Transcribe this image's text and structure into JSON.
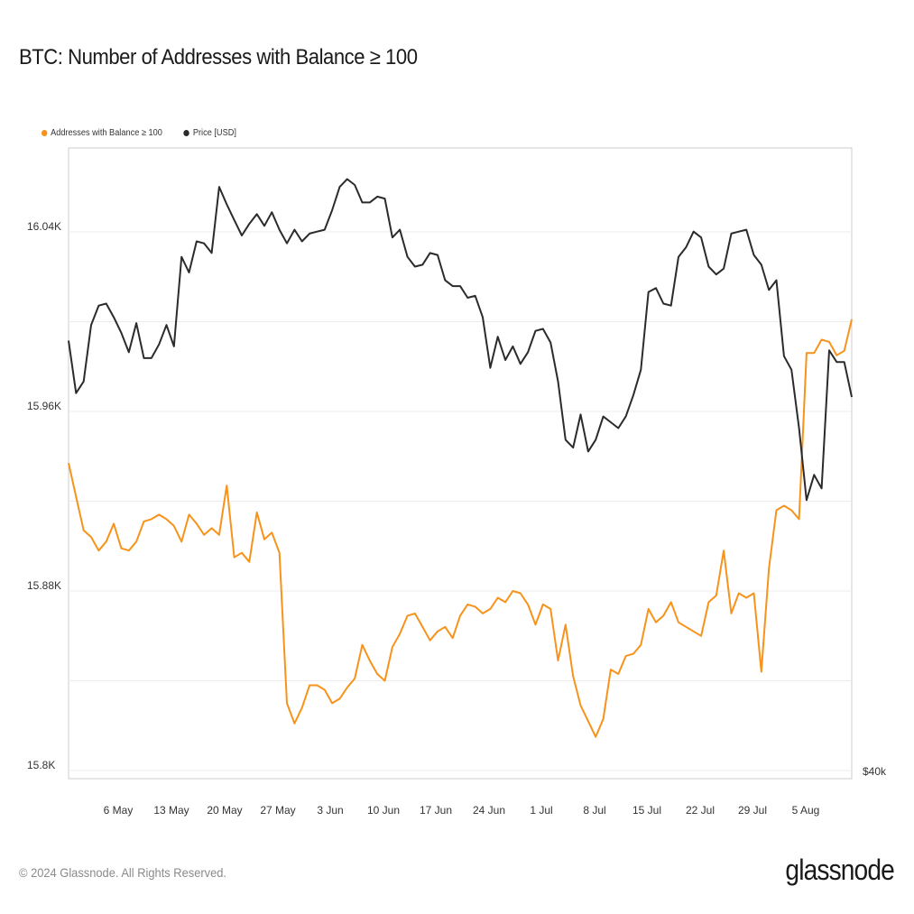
{
  "title": "BTC: Number of Addresses with Balance ≥ 100",
  "legend": {
    "series_1": "Addresses with Balance ≥ 100",
    "series_2": "Price [USD]"
  },
  "footer": {
    "copyright": "© 2024 Glassnode. All Rights Reserved.",
    "brand": "glassnode"
  },
  "colors": {
    "addresses": "#f7931a",
    "price": "#2b2b2b",
    "grid": "#ececec",
    "axis": "#cccccc"
  },
  "chart_data": {
    "type": "line",
    "title": "BTC: Number of Addresses with Balance ≥ 100",
    "xlabel": "",
    "ylabel": "",
    "x_tick_labels": [
      "6 May",
      "13 May",
      "20 May",
      "27 May",
      "3 Jun",
      "10 Jun",
      "17 Jun",
      "24 Jun",
      "1 Jul",
      "8 Jul",
      "15 Jul",
      "22 Jul",
      "29 Jul",
      "5 Aug"
    ],
    "y_left_tick_labels": [
      "16.04K",
      "15.96K",
      "15.88K",
      "15.8K"
    ],
    "y_left_tick_values": [
      16040,
      15960,
      15880,
      15800
    ],
    "y_right_tick_labels": [
      "$40k"
    ],
    "y_left_range": [
      15800,
      16080
    ],
    "x_range": [
      0,
      104
    ],
    "series": [
      {
        "name": "Addresses with Balance ≥ 100",
        "axis": "left",
        "values": [
          15937,
          15922,
          15907,
          15904,
          15898,
          15902,
          15910,
          15899,
          15898,
          15902,
          15911,
          15912,
          15914,
          15912,
          15909,
          15902,
          15914,
          15910,
          15905,
          15908,
          15905,
          15927,
          15895,
          15897,
          15893,
          15915,
          15903,
          15906,
          15897,
          15830,
          15821,
          15828,
          15838,
          15838,
          15836,
          15830,
          15832,
          15837,
          15841,
          15856,
          15849,
          15843,
          15840,
          15855,
          15861,
          15869,
          15870,
          15864,
          15858,
          15862,
          15864,
          15859,
          15869,
          15874,
          15873,
          15870,
          15872,
          15877,
          15875,
          15880,
          15879,
          15874,
          15865,
          15874,
          15872,
          15849,
          15865,
          15842,
          15829,
          15822,
          15815,
          15823,
          15845,
          15843,
          15851,
          15852,
          15856,
          15872,
          15866,
          15869,
          15875,
          15866,
          15864,
          15862,
          15860,
          15875,
          15878,
          15898,
          15870,
          15879,
          15877,
          15879,
          15844,
          15890,
          15916,
          15918,
          15916,
          15912,
          15986,
          15986,
          15992,
          15991,
          15985,
          15987,
          16001
        ]
      },
      {
        "name": "Price [USD]",
        "axis": "right",
        "values": [
          62.1,
          59.4,
          60.0,
          62.9,
          63.9,
          64.0,
          63.3,
          62.5,
          61.5,
          63.0,
          61.2,
          61.2,
          61.9,
          62.9,
          61.8,
          66.4,
          65.6,
          67.2,
          67.1,
          66.6,
          70.0,
          69.1,
          68.3,
          67.5,
          68.1,
          68.6,
          68.0,
          68.7,
          67.8,
          67.1,
          67.8,
          67.2,
          67.6,
          67.7,
          67.8,
          68.8,
          70.0,
          70.4,
          70.1,
          69.2,
          69.2,
          69.5,
          69.4,
          67.4,
          67.8,
          66.4,
          65.9,
          66.0,
          66.6,
          66.5,
          65.2,
          64.9,
          64.9,
          64.3,
          64.4,
          63.3,
          60.7,
          62.3,
          61.1,
          61.8,
          60.9,
          61.5,
          62.6,
          62.7,
          62.0,
          60.0,
          57.0,
          56.6,
          58.3,
          56.4,
          57.0,
          58.2,
          57.9,
          57.6,
          58.2,
          59.3,
          60.6,
          64.6,
          64.8,
          64.0,
          63.9,
          66.4,
          66.9,
          67.7,
          67.4,
          65.9,
          65.5,
          65.8,
          67.6,
          67.7,
          67.8,
          66.5,
          66.0,
          64.7,
          65.2,
          61.3,
          60.6,
          57.6,
          53.9,
          55.2,
          54.5,
          61.6,
          61.0,
          61.0,
          59.2
        ]
      }
    ]
  }
}
